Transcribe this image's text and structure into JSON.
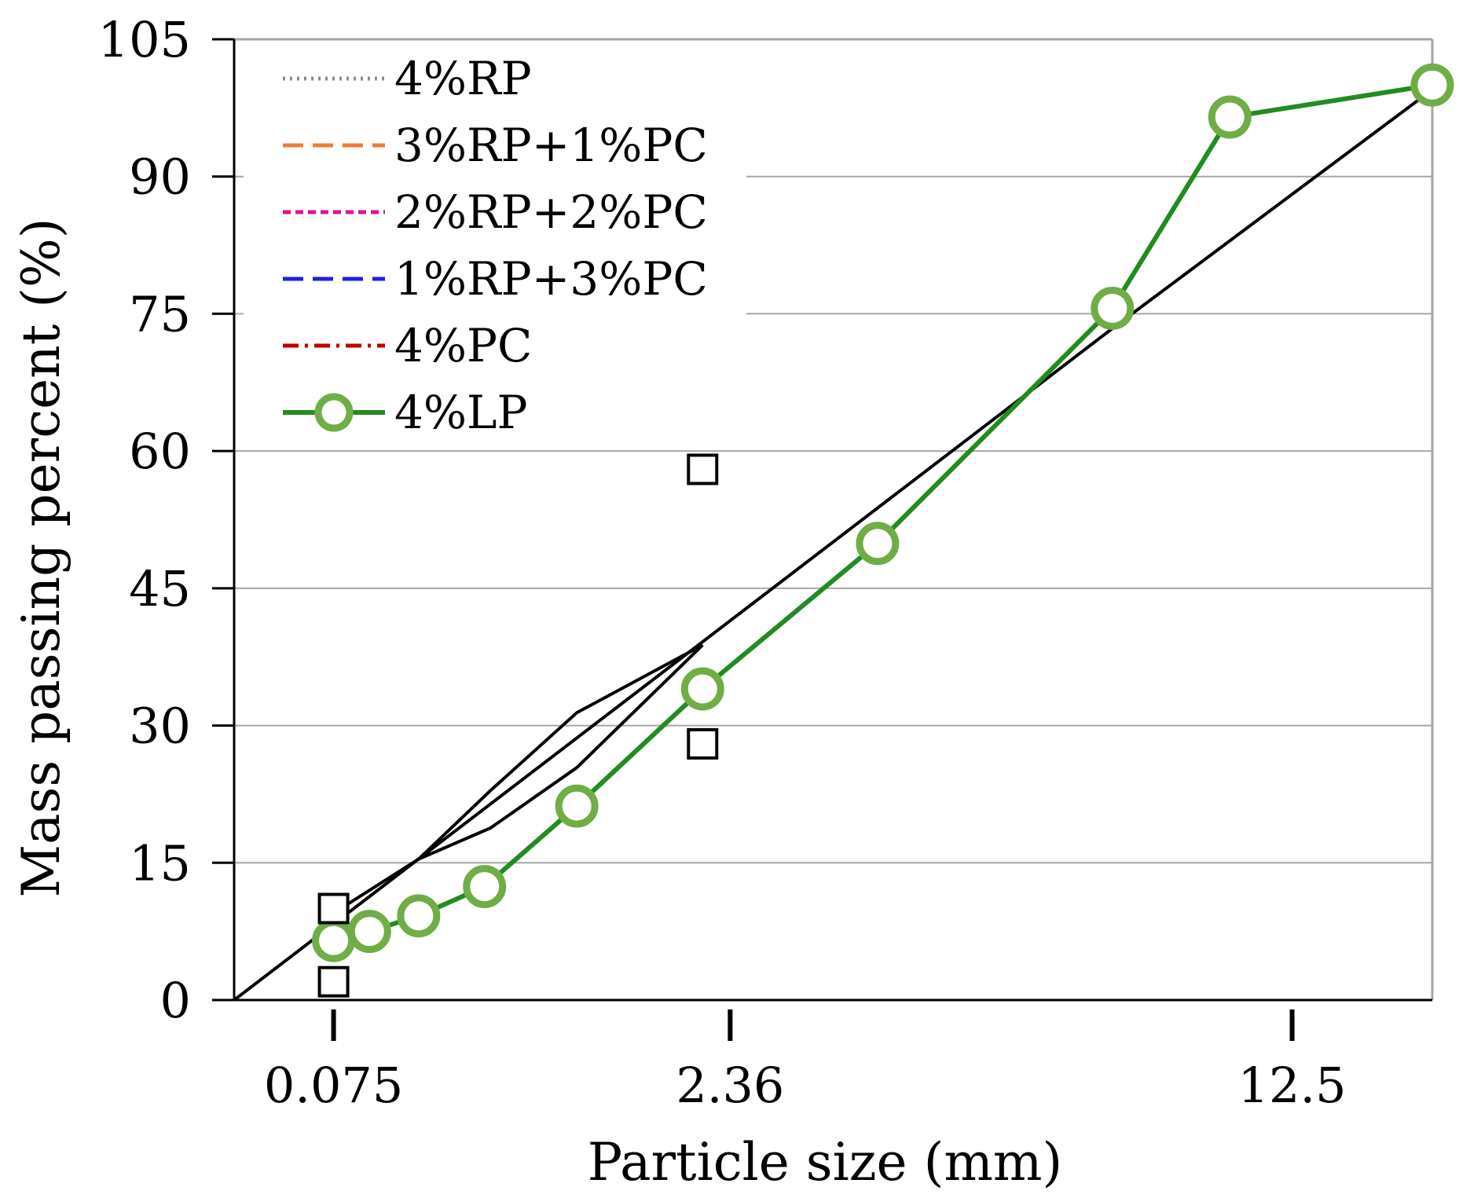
{
  "chart_data": {
    "type": "line",
    "title": "",
    "xlabel": "Particle size (mm)",
    "ylabel": "Mass passing percent (%)",
    "ylim": [
      0,
      105
    ],
    "yticks": [
      0,
      15,
      30,
      45,
      60,
      75,
      90,
      105
    ],
    "xlim": [
      0,
      1
    ],
    "x_tick_labels": [
      {
        "label": "0.075",
        "x": 0.083
      },
      {
        "label": "2.36",
        "x": 0.414
      },
      {
        "label": "12.5",
        "x": 0.883
      }
    ],
    "grid": true,
    "legend_position": "top-left",
    "colors": {
      "4%RP": "#8c8c8c",
      "3%RP+1%PC": "#ed7d31",
      "2%RP+2%PC": "#e0119a",
      "1%RP+3%PC": "#1f1fe0",
      "4%PC": "#c00000",
      "4%LP": "#228b22",
      "4%LP_marker": "#70ad47",
      "gradation_limits": "#000000"
    },
    "series": [
      {
        "name": "4%RP",
        "style": "dotted",
        "x": [
          0.083,
          0.113,
          0.154,
          0.209,
          0.286,
          0.391,
          0.537,
          0.733,
          0.831,
          1.0
        ],
        "y": [
          6.5,
          7.5,
          9.2,
          12.4,
          21.2,
          34.0,
          49.9,
          75.6,
          96.5,
          100
        ]
      },
      {
        "name": "3%RP+1%PC",
        "style": "long-dash",
        "x": [
          0.083,
          0.113,
          0.154,
          0.209,
          0.286,
          0.391,
          0.537,
          0.733,
          0.831,
          1.0
        ],
        "y": [
          6.5,
          7.5,
          9.2,
          12.4,
          21.2,
          34.0,
          49.9,
          75.6,
          96.5,
          100
        ]
      },
      {
        "name": "2%RP+2%PC",
        "style": "short-dash",
        "x": [
          0.083,
          0.113,
          0.154,
          0.209,
          0.286,
          0.391,
          0.537,
          0.733,
          0.831,
          1.0
        ],
        "y": [
          6.5,
          7.5,
          9.2,
          12.4,
          21.2,
          34.0,
          49.9,
          75.6,
          96.5,
          100
        ]
      },
      {
        "name": "1%RP+3%PC",
        "style": "long-dash",
        "x": [
          0.083,
          0.113,
          0.154,
          0.209,
          0.286,
          0.391,
          0.537,
          0.733,
          0.831,
          1.0
        ],
        "y": [
          6.5,
          7.5,
          9.2,
          12.4,
          21.2,
          34.0,
          49.9,
          75.6,
          96.5,
          100
        ]
      },
      {
        "name": "4%PC",
        "style": "dash-dot",
        "x": [
          0.083,
          0.113,
          0.154,
          0.209,
          0.286,
          0.391,
          0.537,
          0.733,
          0.831,
          1.0
        ],
        "y": [
          6.5,
          7.5,
          9.2,
          12.4,
          21.2,
          34.0,
          49.9,
          75.6,
          96.5,
          100
        ]
      },
      {
        "name": "4%LP",
        "style": "solid-circle",
        "x": [
          0.083,
          0.113,
          0.154,
          0.209,
          0.286,
          0.391,
          0.537,
          0.733,
          0.831,
          1.0
        ],
        "y": [
          6.5,
          7.5,
          9.2,
          12.4,
          21.2,
          34.0,
          49.9,
          75.6,
          96.5,
          100
        ]
      }
    ],
    "reference_lines": [
      {
        "name": "max-density-line",
        "x": [
          0,
          0.733,
          1.0
        ],
        "y": [
          0,
          73.4,
          99.5
        ]
      },
      {
        "name": "upper-limit",
        "x": [
          0.083,
          0.154,
          0.214,
          0.286,
          0.391
        ],
        "y": [
          9.5,
          15.4,
          22.9,
          31.4,
          38.8
        ]
      },
      {
        "name": "lower-limit",
        "x": [
          0.154,
          0.214,
          0.286,
          0.391
        ],
        "y": [
          15.4,
          18.8,
          25.4,
          38.8
        ]
      }
    ],
    "control_points": [
      {
        "x": 0.083,
        "y": 2
      },
      {
        "x": 0.083,
        "y": 10
      },
      {
        "x": 0.391,
        "y": 28
      },
      {
        "x": 0.391,
        "y": 58
      }
    ]
  }
}
